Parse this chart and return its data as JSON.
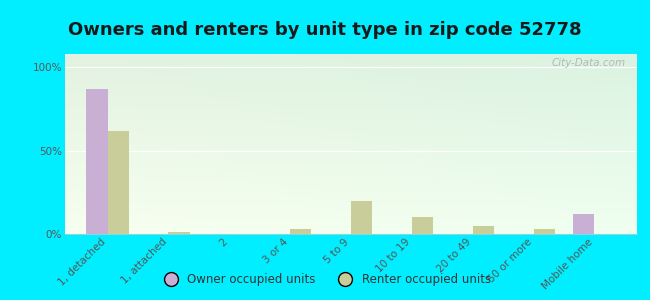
{
  "title": "Owners and renters by unit type in zip code 52778",
  "categories": [
    "1, detached",
    "1, attached",
    "2",
    "3 or 4",
    "5 to 9",
    "10 to 19",
    "20 to 49",
    "50 or more",
    "Mobile home"
  ],
  "owner_values": [
    87,
    0,
    0,
    0,
    0,
    0,
    0,
    0,
    12
  ],
  "renter_values": [
    62,
    1,
    0,
    3,
    20,
    10,
    5,
    3,
    0
  ],
  "owner_color": "#c9afd4",
  "renter_color": "#c8cd9a",
  "bg_color_top_left": "#eaf5e0",
  "bg_color_top_right": "#d0ecd8",
  "bg_color_bottom": "#f8fff0",
  "outer_bg": "#00eeff",
  "yticks": [
    0,
    50,
    100
  ],
  "ytick_labels": [
    "0%",
    "50%",
    "100%"
  ],
  "ylim": [
    0,
    108
  ],
  "bar_width": 0.35,
  "legend_owner": "Owner occupied units",
  "legend_renter": "Renter occupied units",
  "watermark": "City-Data.com",
  "title_fontsize": 13,
  "tick_fontsize": 7.5,
  "legend_fontsize": 8.5
}
